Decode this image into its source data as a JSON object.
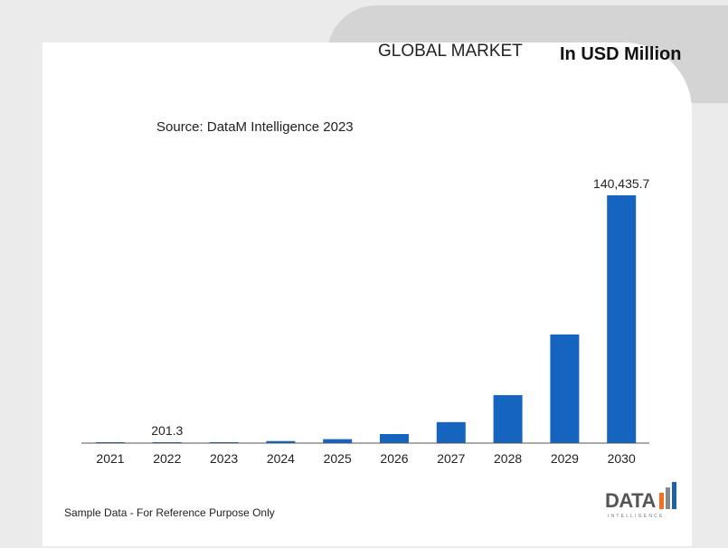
{
  "header": {
    "title": "GLOBAL MARKET",
    "unit": "In USD Million"
  },
  "source": "Source: DataM Intelligence 2023",
  "footer": {
    "note": "Sample Data - For Reference Purpose Only"
  },
  "logo": {
    "text": "DATA",
    "subtext": "INTELLIGENCE",
    "colors": [
      "#f37021",
      "#888888",
      "#1f5fa8"
    ]
  },
  "colors": {
    "bar": "#1565c0",
    "header_bg": "#d4d4d4",
    "page_bg": "#ebebeb"
  },
  "chart_data": {
    "type": "bar",
    "categories": [
      "2021",
      "2022",
      "2023",
      "2024",
      "2025",
      "2026",
      "2027",
      "2028",
      "2029",
      "2030"
    ],
    "values": [
      140,
      201.3,
      291,
      1160,
      2240,
      5130,
      11890,
      27190,
      61590,
      140435.7
    ],
    "data_labels": {
      "2022": "201.3",
      "2030": "140,435.7"
    },
    "xlabel": "",
    "ylabel": "",
    "ylim": [
      0,
      140435.7
    ],
    "grid": false,
    "legend": "none"
  }
}
